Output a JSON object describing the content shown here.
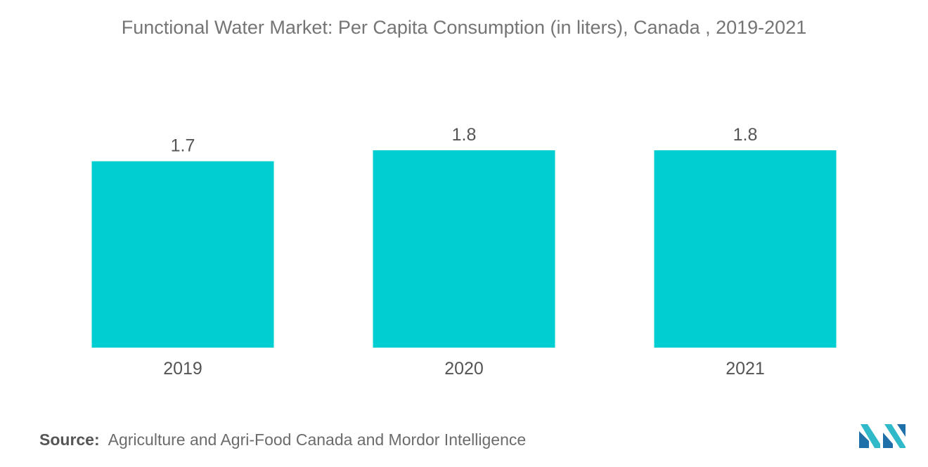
{
  "title": "Functional Water Market: Per Capita Consumption (in liters), Canada , 2019-2021",
  "source": {
    "label": "Source:",
    "text": "Agriculture and Agri-Food Canada and Mordor Intelligence"
  },
  "logo": {
    "icon": "mordor-intelligence-logo",
    "colors": [
      "#1f6fa8",
      "#2fb9c9"
    ]
  },
  "colors": {
    "bar": "#00ced1",
    "text": "#555555",
    "title": "#757575"
  },
  "chart_data": {
    "type": "bar",
    "title": "Functional Water Market: Per Capita Consumption (in liters), Canada , 2019-2021",
    "categories": [
      "2019",
      "2020",
      "2021"
    ],
    "values": [
      1.7,
      1.8,
      1.8
    ],
    "data_labels": [
      "1.7",
      "1.8",
      "1.8"
    ],
    "xlabel": "",
    "ylabel": "",
    "ylim": [
      0,
      1.8
    ],
    "grid": false,
    "legend": "none",
    "y_axis_visible": false
  }
}
